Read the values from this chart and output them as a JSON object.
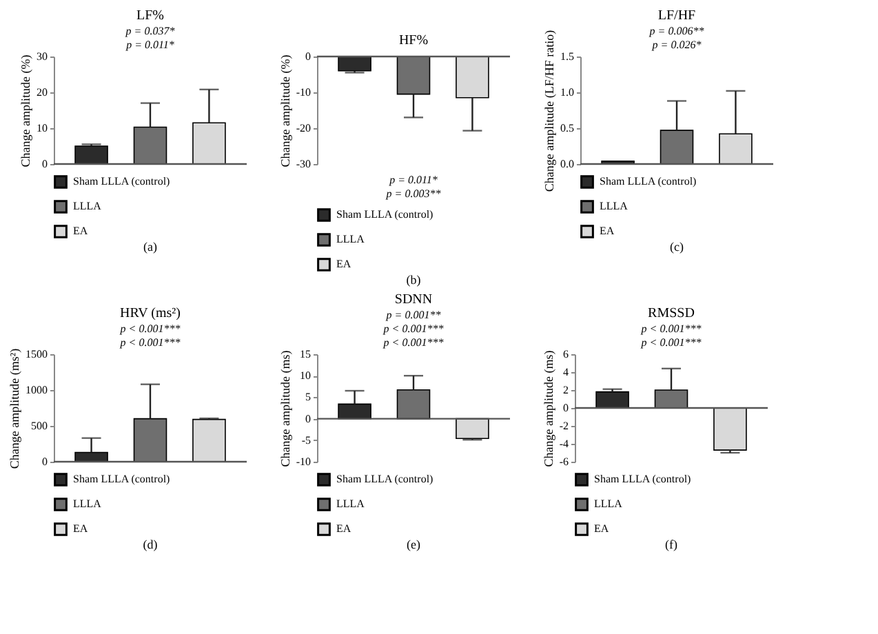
{
  "chart_data": [
    {
      "type": "bar",
      "title": "LF%",
      "ylabel": "Change amplitude (%)",
      "categories": [
        null
      ],
      "legend": "bottom",
      "ylim": [
        0,
        30
      ],
      "yticks": [
        0,
        10,
        20,
        30
      ],
      "series": [
        {
          "name": "Sham LLLA (control)",
          "color": "#2b2b2b",
          "values": [
            5.0
          ],
          "errors": [
            [
              5.0,
              5.5
            ]
          ]
        },
        {
          "name": "LLLA",
          "color": "#6f6f6f",
          "values": [
            10.3
          ],
          "errors": [
            [
              10.3,
              17
            ]
          ]
        },
        {
          "name": "EA",
          "color": "#d9d9d9",
          "values": [
            11.5
          ],
          "errors": [
            [
              11.5,
              20.8
            ]
          ]
        }
      ],
      "annotations": [
        "p = 0.037*",
        "p = 0.011*",
        "(a)"
      ]
    },
    {
      "type": "bar",
      "title": "HF%",
      "ylabel": "Change amplitude (%)",
      "categories": [
        null
      ],
      "legend": "bottom",
      "ylim": [
        -30,
        0
      ],
      "yticks": [
        -30,
        -20,
        -10,
        0
      ],
      "series": [
        {
          "name": "Sham LLLA (control)",
          "color": "#2b2b2b",
          "values": [
            -4.0
          ],
          "errors": [
            [
              -4.5,
              -4.0
            ]
          ]
        },
        {
          "name": "LLLA",
          "color": "#6f6f6f",
          "values": [
            -10.5
          ],
          "errors": [
            [
              -17,
              -10.5
            ]
          ]
        },
        {
          "name": "EA",
          "color": "#d9d9d9",
          "values": [
            -11.5
          ],
          "errors": [
            [
              -20.7,
              -11.5
            ]
          ]
        }
      ],
      "annotations": [
        "p = 0.011*",
        "p = 0.003**",
        "(b)"
      ]
    },
    {
      "type": "bar",
      "title": "LF/HF",
      "ylabel": "Change amplitude (LF/HF ratio)",
      "categories": [
        null
      ],
      "legend": "bottom",
      "ylim": [
        0,
        1.5
      ],
      "yticks": [
        {
          "value": 0,
          "label": "0.0"
        },
        0.5,
        {
          "value": 1,
          "label": "1.0"
        },
        1.5
      ],
      "series": [
        {
          "name": "Sham LLLA (control)",
          "color": "#2b2b2b",
          "values": [
            0.04
          ],
          "errors": [
            null
          ]
        },
        {
          "name": "LLLA",
          "color": "#6f6f6f",
          "values": [
            0.47
          ],
          "errors": [
            [
              0.47,
              0.88
            ]
          ]
        },
        {
          "name": "EA",
          "color": "#d9d9d9",
          "values": [
            0.42
          ],
          "errors": [
            [
              0.42,
              1.02
            ]
          ]
        }
      ],
      "annotations": [
        "p = 0.006**",
        "p = 0.026*",
        "(c)"
      ]
    },
    {
      "type": "bar",
      "title": "HRV (ms²)",
      "ylabel": "Change amplitude (ms²)",
      "categories": [
        null
      ],
      "legend": "bottom",
      "ylim": [
        0,
        1500
      ],
      "yticks": [
        0,
        500,
        1000,
        1500
      ],
      "series": [
        {
          "name": "Sham LLLA (control)",
          "color": "#2b2b2b",
          "values": [
            130
          ],
          "errors": [
            [
              130,
              330
            ]
          ]
        },
        {
          "name": "LLLA",
          "color": "#6f6f6f",
          "values": [
            600
          ],
          "errors": [
            [
              600,
              1080
            ]
          ]
        },
        {
          "name": "EA",
          "color": "#d9d9d9",
          "values": [
            590
          ],
          "errors": [
            [
              590,
              605
            ]
          ]
        }
      ],
      "annotations": [
        "p < 0.001***",
        "p < 0.001***",
        "(d)"
      ]
    },
    {
      "type": "bar",
      "title": "SDNN",
      "ylabel": "Change amplitude (ms)",
      "categories": [
        null
      ],
      "legend": "bottom",
      "ylim": [
        -10,
        15
      ],
      "yticks": [
        -10,
        -5,
        0,
        5,
        10,
        15
      ],
      "series": [
        {
          "name": "Sham LLLA (control)",
          "color": "#2b2b2b",
          "values": [
            3.4
          ],
          "errors": [
            [
              3.4,
              6.5
            ]
          ]
        },
        {
          "name": "LLLA",
          "color": "#6f6f6f",
          "values": [
            6.7
          ],
          "errors": [
            [
              6.7,
              10
            ]
          ]
        },
        {
          "name": "EA",
          "color": "#d9d9d9",
          "values": [
            -4.6
          ],
          "errors": [
            [
              -4.9,
              -4.6
            ]
          ]
        }
      ],
      "annotations": [
        "p = 0.001**",
        "p < 0.001***",
        "p < 0.001***",
        "(e)"
      ]
    },
    {
      "type": "bar",
      "title": "RMSSD",
      "ylabel": "Change amplitude (ms)",
      "categories": [
        null
      ],
      "legend": "bottom",
      "ylim": [
        -6,
        6
      ],
      "yticks": [
        -6,
        -4,
        -2,
        0,
        2,
        4,
        6
      ],
      "series": [
        {
          "name": "Sham LLLA (control)",
          "color": "#2b2b2b",
          "values": [
            1.8
          ],
          "errors": [
            [
              1.8,
              2.1
            ]
          ]
        },
        {
          "name": "LLLA",
          "color": "#6f6f6f",
          "values": [
            2.0
          ],
          "errors": [
            [
              2.0,
              4.4
            ]
          ]
        },
        {
          "name": "EA",
          "color": "#d9d9d9",
          "values": [
            -4.7
          ],
          "errors": [
            [
              -5.0,
              -4.7
            ]
          ]
        }
      ],
      "annotations": [
        "p < 0.001***",
        "p < 0.001***",
        "(f)"
      ]
    }
  ]
}
